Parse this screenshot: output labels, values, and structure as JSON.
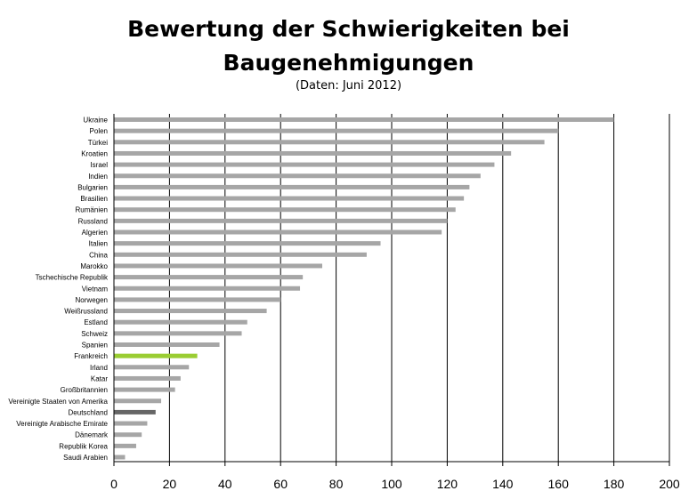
{
  "chart_data": {
    "type": "bar",
    "orientation": "horizontal",
    "title": "Bewertung der Schwierigkeiten bei Baugenehmigungen",
    "title_lines": [
      "Bewertung der Schwierigkeiten bei",
      "Baugenehmigungen"
    ],
    "subtitle": "(Daten: Juni 2012)",
    "xlabel": "",
    "ylabel": "",
    "xlim": [
      0,
      200
    ],
    "xticks": [
      0,
      20,
      40,
      60,
      80,
      100,
      120,
      140,
      160,
      180,
      200
    ],
    "grid": "vertical",
    "categories": [
      "Ukraine",
      "Polen",
      "Türkei",
      "Kroatien",
      "Israel",
      "Indien",
      "Bulgarien",
      "Brasilien",
      "Rumänien",
      "Russland",
      "Algerien",
      "Italien",
      "China",
      "Marokko",
      "Tschechische Republik",
      "Vietnam",
      "Norwegen",
      "Weißrussland",
      "Estland",
      "Schweiz",
      "Spanien",
      "Frankreich",
      "Irland",
      "Katar",
      "Großbritannien",
      "Vereinigte Staaten von Amerika",
      "Deutschland",
      "Vereinigte Arabische Emirate",
      "Dänemark",
      "Republik Korea",
      "Saudi Arabien"
    ],
    "values": [
      180,
      160,
      155,
      143,
      137,
      132,
      128,
      126,
      123,
      120,
      118,
      96,
      91,
      75,
      68,
      67,
      60,
      55,
      48,
      46,
      38,
      30,
      27,
      24,
      22,
      17,
      15,
      12,
      10,
      8,
      4
    ],
    "colors": {
      "default": "#a6a6a6",
      "Frankreich": "#9acd32",
      "Deutschland": "#666666"
    }
  }
}
